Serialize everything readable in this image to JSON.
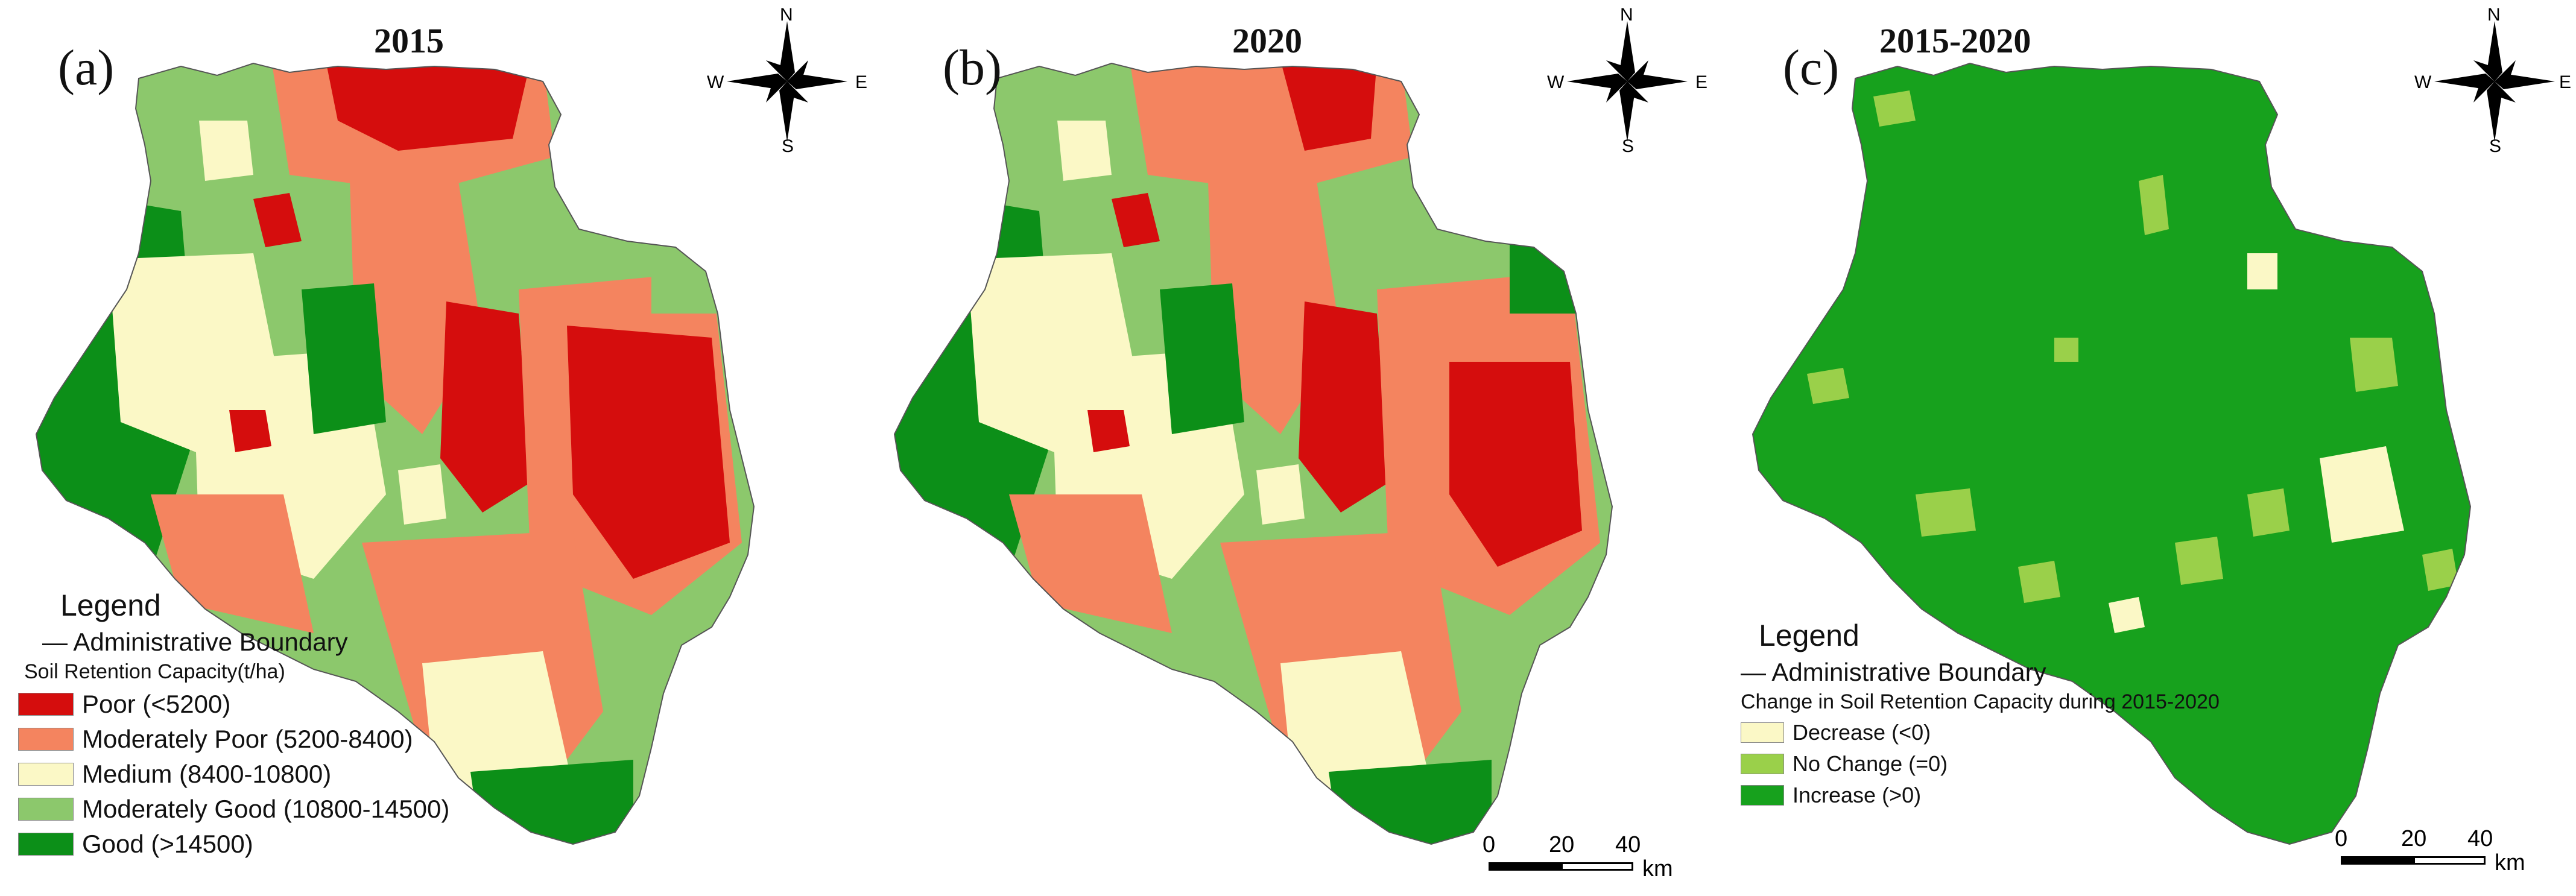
{
  "panels": [
    {
      "label": "(a)",
      "title": "2015",
      "compass": {
        "n": "N",
        "s": "S",
        "e": "E",
        "w": "W"
      }
    },
    {
      "label": "(b)",
      "title": "2020",
      "compass": {
        "n": "N",
        "s": "S",
        "e": "E",
        "w": "W"
      }
    },
    {
      "label": "(c)",
      "title": "2015-2020",
      "compass": {
        "n": "N",
        "s": "S",
        "e": "E",
        "w": "W"
      }
    }
  ],
  "legend_capacity": {
    "title": "Legend",
    "boundary": "— Administrative Boundary",
    "subtitle": "Soil Retention Capacity(t/ha)",
    "items": [
      {
        "label": "Poor (<5200)",
        "color": "#d50d0d"
      },
      {
        "label": "Moderately Poor (5200-8400)",
        "color": "#f4845f"
      },
      {
        "label": "Medium (8400-10800)",
        "color": "#fbf8c6"
      },
      {
        "label": "Moderately Good (10800-14500)",
        "color": "#8cc86c"
      },
      {
        "label": "Good (>14500)",
        "color": "#0c8f18"
      }
    ]
  },
  "legend_change": {
    "title": "Legend",
    "boundary": "— Administrative Boundary",
    "subtitle": "Change in Soil Retention Capacity during 2015-2020",
    "items": [
      {
        "label": "Decrease (<0)",
        "color": "#fbf8c6"
      },
      {
        "label": "No Change (=0)",
        "color": "#9ad04a"
      },
      {
        "label": "Increase (>0)",
        "color": "#17a11d"
      }
    ]
  },
  "scalebar": {
    "ticks": [
      "0",
      "20",
      "40"
    ],
    "unit": "km"
  }
}
